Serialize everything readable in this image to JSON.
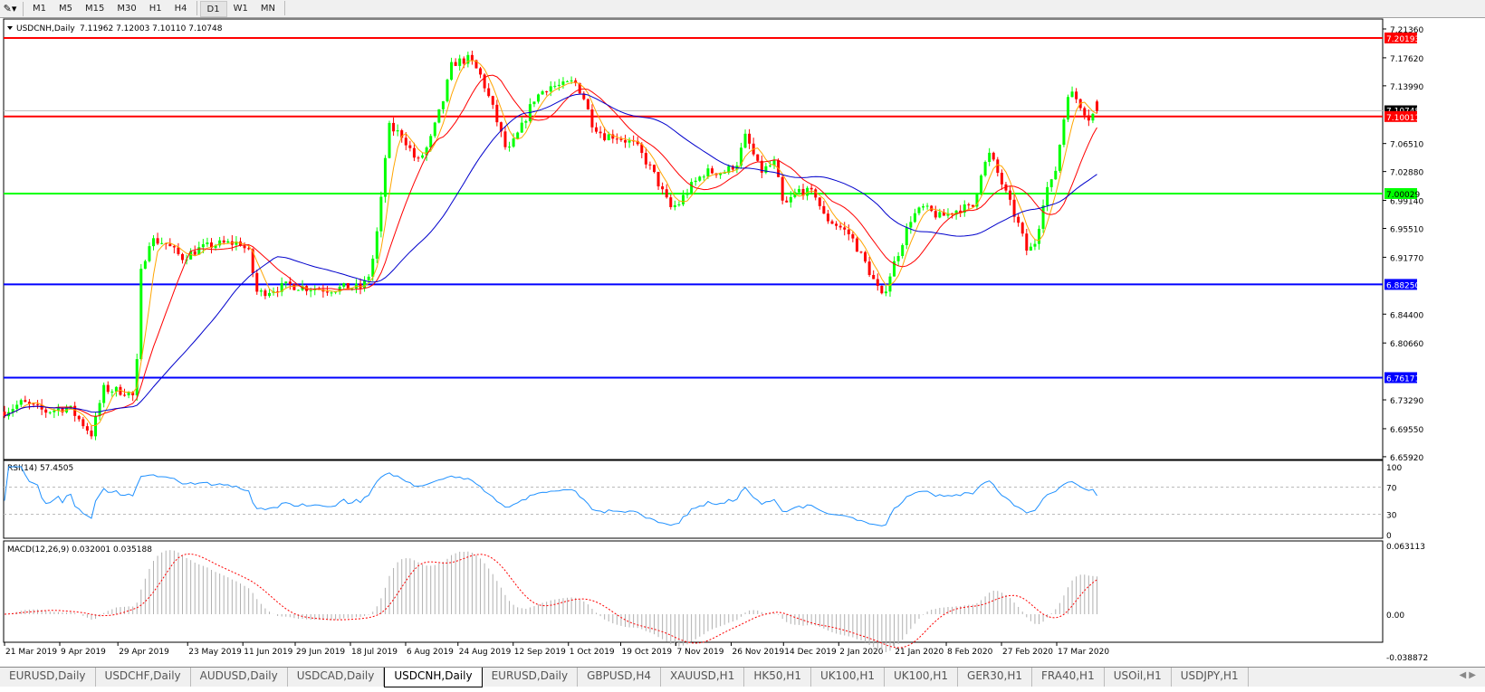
{
  "toolbar": {
    "timeframes": [
      "M1",
      "M5",
      "M15",
      "M30",
      "H1",
      "H4",
      "D1",
      "W1",
      "MN"
    ],
    "active": "D1"
  },
  "header": {
    "symbol": "USDCNH,Daily",
    "ohlc": "7.11962 7.12003 7.10110 7.10748"
  },
  "colors": {
    "bull": "#00ff00",
    "bear": "#ff0000",
    "ma_fast": "#ffa500",
    "ma_mid": "#ff0000",
    "ma_slow": "#0000cc",
    "rsi": "#1e90ff",
    "macd_signal": "#ff0000",
    "macd_hist": "#b0b0b0"
  },
  "chart_data": [
    {
      "type": "candlestick",
      "symbol": "USDCNH",
      "timeframe": "Daily",
      "last": {
        "open": 7.11962,
        "high": 7.12003,
        "low": 7.1011,
        "close": 7.10748
      },
      "ylim": [
        6.6592,
        7.2136
      ],
      "y_ticks": [
        "7.21360",
        "7.17620",
        "7.13990",
        "7.06510",
        "7.02880",
        "6.99140",
        "6.95510",
        "6.91770",
        "6.84400",
        "6.80660",
        "6.73290",
        "6.69550",
        "6.65920"
      ],
      "x_ticks": [
        "21 Mar 2019",
        "9 Apr 2019",
        "29 Apr 2019",
        "23 May 2019",
        "11 Jun 2019",
        "29 Jun 2019",
        "18 Jul 2019",
        "6 Aug 2019",
        "24 Aug 2019",
        "12 Sep 2019",
        "1 Oct 2019",
        "19 Oct 2019",
        "7 Nov 2019",
        "26 Nov 2019",
        "14 Dec 2019",
        "2 Jan 2020",
        "21 Jan 2020",
        "8 Feb 2020",
        "27 Feb 2020",
        "17 Mar 2020"
      ],
      "hlines": [
        {
          "value": "7.20193",
          "color": "#ff0000"
        },
        {
          "value": "7.10011",
          "color": "#ff0000"
        },
        {
          "value": "7.00029",
          "color": "#00ff00"
        },
        {
          "value": "6.88250",
          "color": "#0000ff"
        },
        {
          "value": "6.76171",
          "color": "#0000ff"
        }
      ],
      "closes": [
        [
          "2019-03-21",
          6.7177
        ],
        [
          "2019-03-27",
          6.7294
        ],
        [
          "2019-04-04",
          6.7177
        ],
        [
          "2019-04-12",
          6.7236
        ],
        [
          "2019-04-16",
          6.706
        ],
        [
          "2019-04-20",
          6.6884
        ],
        [
          "2019-04-24",
          6.747
        ],
        [
          "2019-05-02",
          6.7435
        ],
        [
          "2019-05-05",
          6.7353
        ],
        [
          "2019-05-07",
          6.8994
        ],
        [
          "2019-05-10",
          6.9404
        ],
        [
          "2019-05-15",
          6.9369
        ],
        [
          "2019-05-21",
          6.917
        ],
        [
          "2019-05-27",
          6.9287
        ],
        [
          "2019-06-02",
          6.9346
        ],
        [
          "2019-06-10",
          6.9369
        ],
        [
          "2019-06-13",
          6.9229
        ],
        [
          "2019-06-16",
          6.8701
        ],
        [
          "2019-06-21",
          6.876
        ],
        [
          "2019-06-27",
          6.8818
        ],
        [
          "2019-07-03",
          6.8783
        ],
        [
          "2019-07-10",
          6.876
        ],
        [
          "2019-07-16",
          6.8783
        ],
        [
          "2019-07-22",
          6.8783
        ],
        [
          "2019-07-25",
          6.8994
        ],
        [
          "2019-07-28",
          6.9698
        ],
        [
          "2019-07-31",
          7.087
        ],
        [
          "2019-08-05",
          7.0753
        ],
        [
          "2019-08-10",
          7.0401
        ],
        [
          "2019-08-14",
          7.0635
        ],
        [
          "2019-08-19",
          7.1222
        ],
        [
          "2019-08-22",
          7.1691
        ],
        [
          "2019-08-28",
          7.1749
        ],
        [
          "2019-09-01",
          7.1515
        ],
        [
          "2019-09-05",
          7.1104
        ],
        [
          "2019-09-10",
          7.0518
        ],
        [
          "2019-09-15",
          7.087
        ],
        [
          "2019-09-19",
          7.1222
        ],
        [
          "2019-09-24",
          7.1397
        ],
        [
          "2019-09-29",
          7.1397
        ],
        [
          "2019-10-03",
          7.1456
        ],
        [
          "2019-10-06",
          7.128
        ],
        [
          "2019-10-09",
          7.0928
        ],
        [
          "2019-10-13",
          7.0753
        ],
        [
          "2019-10-17",
          7.0753
        ],
        [
          "2019-10-24",
          7.0635
        ],
        [
          "2019-10-30",
          7.0284
        ],
        [
          "2019-11-05",
          6.9815
        ],
        [
          "2019-11-08",
          6.9873
        ],
        [
          "2019-11-11",
          7.0049
        ],
        [
          "2019-11-17",
          7.0284
        ],
        [
          "2019-11-24",
          7.0284
        ],
        [
          "2019-11-28",
          7.0401
        ],
        [
          "2019-12-01",
          7.0753
        ],
        [
          "2019-12-06",
          7.0284
        ],
        [
          "2019-12-11",
          7.0401
        ],
        [
          "2019-12-14",
          6.9815
        ],
        [
          "2019-12-19",
          7.0049
        ],
        [
          "2019-12-25",
          6.9991
        ],
        [
          "2019-12-28",
          6.9698
        ],
        [
          "2020-01-02",
          6.958
        ],
        [
          "2020-01-06",
          6.9463
        ],
        [
          "2020-01-11",
          6.9111
        ],
        [
          "2020-01-14",
          6.8877
        ],
        [
          "2020-01-17",
          6.8642
        ],
        [
          "2020-01-20",
          6.8994
        ],
        [
          "2020-01-23",
          6.9287
        ],
        [
          "2020-01-27",
          6.9698
        ],
        [
          "2020-01-31",
          6.9815
        ],
        [
          "2020-02-06",
          6.9698
        ],
        [
          "2020-02-13",
          6.9815
        ],
        [
          "2020-02-17",
          6.9815
        ],
        [
          "2020-02-20",
          7.0284
        ],
        [
          "2020-02-23",
          7.0518
        ],
        [
          "2020-02-28",
          7.0049
        ],
        [
          "2020-03-04",
          6.958
        ],
        [
          "2020-03-07",
          6.9229
        ],
        [
          "2020-03-10",
          6.9404
        ],
        [
          "2020-03-13",
          7.0049
        ],
        [
          "2020-03-16",
          7.017
        ],
        [
          "2020-03-19",
          7.087
        ],
        [
          "2020-03-21",
          7.1339
        ],
        [
          "2020-03-24",
          7.1222
        ],
        [
          "2020-03-28",
          7.0987
        ],
        [
          "2020-03-31",
          7.10748
        ]
      ]
    },
    {
      "type": "line",
      "title": "RSI(14) 57.4505",
      "ylim": [
        0,
        100
      ],
      "levels": [
        30,
        70
      ],
      "y_ticks": [
        "100",
        "70",
        "30",
        "0"
      ],
      "last": 57.4505
    },
    {
      "type": "bar+line",
      "title": "MACD(12,26,9) 0.032001 0.035188",
      "ylim": [
        -0.038872,
        0.063113
      ],
      "y_ticks": [
        "0.063113",
        "0.00",
        "-0.038872"
      ],
      "last_macd": 0.032001,
      "last_signal": 0.035188
    }
  ],
  "tabs": [
    "EURUSD,Daily",
    "USDCHF,Daily",
    "AUDUSD,Daily",
    "USDCAD,Daily",
    "USDCNH,Daily",
    "EURUSD,Daily",
    "GBPUSD,H4",
    "XAUUSD,H1",
    "HK50,H1",
    "UK100,H1",
    "UK100,H1",
    "GER30,H1",
    "FRA40,H1",
    "USOil,H1",
    "USDJPY,H1"
  ],
  "active_tab": "USDCNH,Daily"
}
